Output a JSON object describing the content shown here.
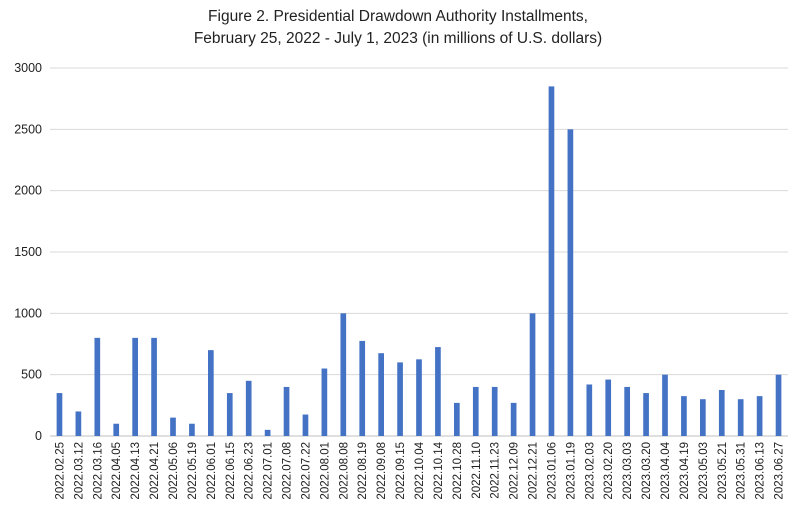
{
  "chart_data": {
    "type": "bar",
    "title": "Figure 2. Presidential Drawdown Authority Installments,",
    "subtitle": "February 25, 2022 - July 1, 2023 (in millions of U.S. dollars)",
    "xlabel": "",
    "ylabel": "",
    "ylim": [
      0,
      3000
    ],
    "yticks": [
      0,
      500,
      1000,
      1500,
      2000,
      2500,
      3000
    ],
    "grid": true,
    "legend": "none",
    "bar_color": "#4472C4",
    "categories": [
      "2022.02.25",
      "2022.03.12",
      "2022.03.16",
      "2022.04.05",
      "2022.04.13",
      "2022.04.21",
      "2022.05.06",
      "2022.05.19",
      "2022.06.01",
      "2022.06.15",
      "2022.06.23",
      "2022.07.01",
      "2022.07.08",
      "2022.07.22",
      "2022.08.01",
      "2022.08.08",
      "2022.08.19",
      "2022.09.08",
      "2022.09.15",
      "2022.10.04",
      "2022.10.14",
      "2022.10.28",
      "2022.11.10",
      "2022.11.23",
      "2022.12.09",
      "2022.12.21",
      "2023.01.06",
      "2023.01.19",
      "2023.02.03",
      "2023.02.20",
      "2023.03.03",
      "2023.03.20",
      "2023.04.04",
      "2023.04.19",
      "2023.05.03",
      "2023.05.21",
      "2023.05.31",
      "2023.06.13",
      "2023.06.27"
    ],
    "values": [
      350,
      200,
      800,
      100,
      800,
      800,
      150,
      100,
      700,
      350,
      450,
      50,
      400,
      175,
      550,
      1000,
      775,
      675,
      600,
      625,
      725,
      270,
      400,
      400,
      270,
      1000,
      2850,
      2500,
      420,
      460,
      400,
      350,
      500,
      325,
      300,
      375,
      300,
      325,
      500
    ]
  }
}
